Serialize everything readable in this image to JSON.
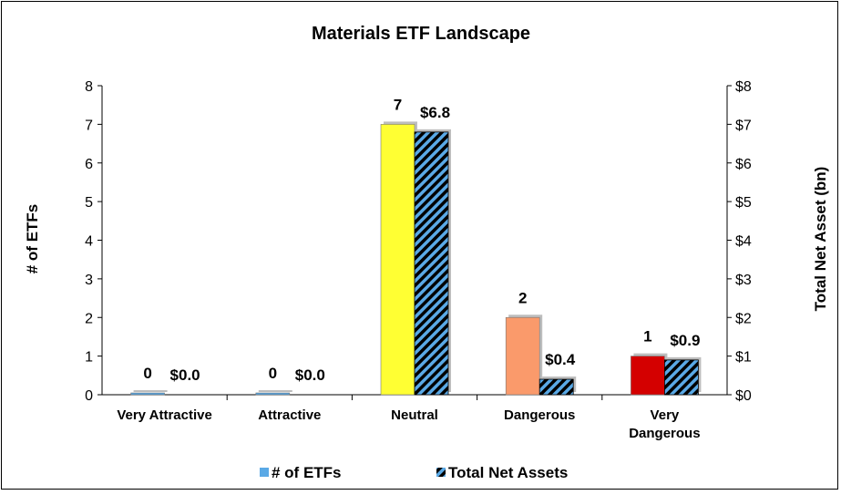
{
  "chart_data": {
    "type": "bar",
    "title": "Materials ETF Landscape",
    "categories": [
      "Very Attractive",
      "Attractive",
      "Neutral",
      "Dangerous",
      "Very Dangerous"
    ],
    "category_lines": [
      [
        "Very Attractive"
      ],
      [
        "Attractive"
      ],
      [
        "Neutral"
      ],
      [
        "Dangerous"
      ],
      [
        "Very",
        "Dangerous"
      ]
    ],
    "series": [
      {
        "name": "# of ETFs",
        "axis": "left",
        "values": [
          0,
          0,
          7,
          2,
          1
        ],
        "labels": [
          "0",
          "0",
          "7",
          "2",
          "1"
        ],
        "colors": [
          "#4fa3e0",
          "#4fa3e0",
          "#ffff33",
          "#fa9a6b",
          "#d40000"
        ],
        "legend_color": "#5aa9e6"
      },
      {
        "name": "Total Net Assets",
        "axis": "right",
        "values": [
          0.0,
          0.0,
          6.8,
          0.4,
          0.9
        ],
        "labels": [
          "$0.0",
          "$0.0",
          "$6.8",
          "$0.4",
          "$0.9"
        ],
        "pattern": "diagonal-stripes",
        "colors": [
          "#5aa9e6",
          "#000000"
        ]
      }
    ],
    "ylabel": "# of ETFs",
    "y2label": "Total Net Asset (bn)",
    "ylim": [
      0,
      8
    ],
    "y2lim": [
      0,
      8
    ],
    "yticks": [
      "0",
      "1",
      "2",
      "3",
      "4",
      "5",
      "6",
      "7",
      "8"
    ],
    "y2ticks": [
      "$0",
      "$1",
      "$2",
      "$3",
      "$4",
      "$5",
      "$6",
      "$7",
      "$8"
    ],
    "grid": false,
    "legend": "bottom"
  }
}
